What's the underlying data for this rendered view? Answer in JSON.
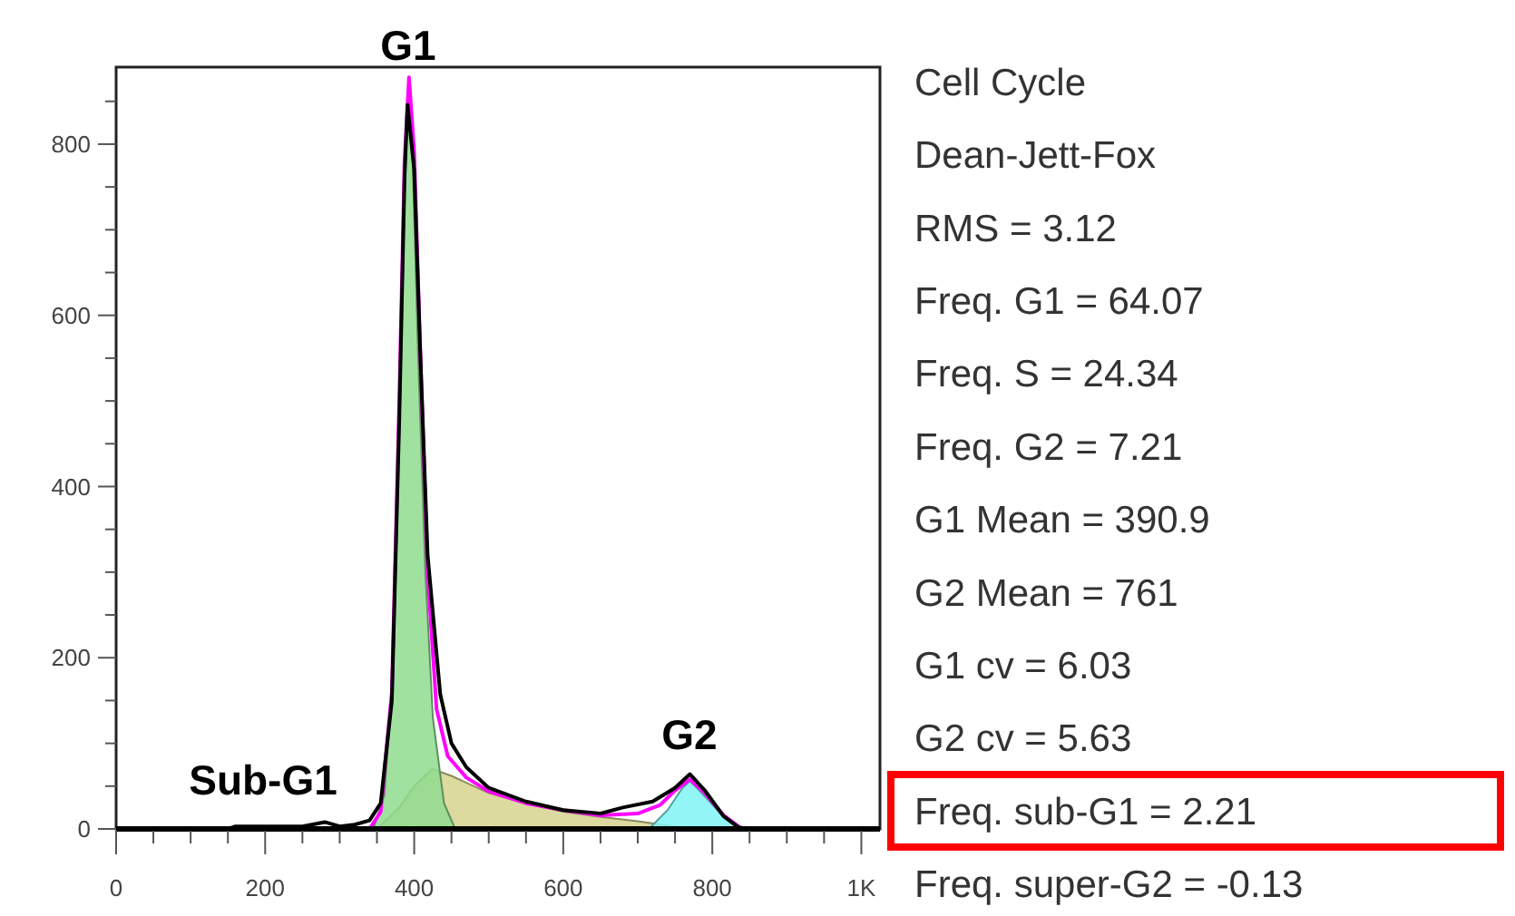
{
  "chart_data": {
    "type": "line",
    "xlim": [
      0,
      1025
    ],
    "ylim": [
      0,
      890
    ],
    "xticks": [
      0,
      {
        "value": 50,
        "label": null
      },
      {
        "value": 100,
        "label": null
      },
      {
        "value": 150,
        "label": null
      },
      200,
      {
        "value": 250,
        "label": null
      },
      {
        "value": 300,
        "label": null
      },
      {
        "value": 350,
        "label": null
      },
      400,
      {
        "value": 450,
        "label": null
      },
      {
        "value": 500,
        "label": null
      },
      {
        "value": 550,
        "label": null
      },
      600,
      {
        "value": 650,
        "label": null
      },
      {
        "value": 700,
        "label": null
      },
      {
        "value": 750,
        "label": null
      },
      800,
      {
        "value": 850,
        "label": null
      },
      {
        "value": 900,
        "label": null
      },
      {
        "value": 950,
        "label": null
      },
      {
        "value": 1000,
        "label": "1K"
      }
    ],
    "yticks": [
      0,
      {
        "value": 50,
        "label": null
      },
      {
        "value": 100,
        "label": null
      },
      {
        "value": 150,
        "label": null
      },
      200,
      {
        "value": 250,
        "label": null
      },
      {
        "value": 300,
        "label": null
      },
      {
        "value": 350,
        "label": null
      },
      400,
      {
        "value": 450,
        "label": null
      },
      {
        "value": 500,
        "label": null
      },
      {
        "value": 550,
        "label": null
      },
      600,
      {
        "value": 650,
        "label": null
      },
      {
        "value": 700,
        "label": null
      },
      {
        "value": 750,
        "label": null
      },
      800,
      {
        "value": 850,
        "label": null
      }
    ],
    "grid": false,
    "series": [
      {
        "type": "area",
        "color": "#d6d48e",
        "x": [
          350,
          380,
          400,
          424,
          450,
          500,
          550,
          600,
          650,
          700,
          740,
          780
        ],
        "values": [
          0,
          25,
          50,
          70,
          62,
          42,
          30,
          20,
          14,
          9,
          4,
          0
        ]
      },
      {
        "type": "area",
        "color": "#8fdc8f",
        "x": [
          345,
          360,
          370,
          380,
          386,
          392,
          398,
          405,
          415,
          425,
          440,
          455
        ],
        "values": [
          0,
          40,
          160,
          480,
          720,
          860,
          780,
          560,
          300,
          130,
          30,
          0
        ]
      },
      {
        "type": "area",
        "color": "#80f4f4",
        "x": [
          715,
          740,
          760,
          770,
          790,
          815,
          840
        ],
        "values": [
          0,
          22,
          48,
          56,
          38,
          14,
          0
        ]
      },
      {
        "type": "line",
        "color": "#ff00ff",
        "x": [
          340,
          355,
          370,
          380,
          387,
          393,
          400,
          408,
          418,
          430,
          445,
          470,
          500,
          550,
          600,
          650,
          700,
          730,
          750,
          770,
          790,
          815,
          840
        ],
        "values": [
          0,
          20,
          160,
          500,
          780,
          878,
          790,
          560,
          300,
          140,
          85,
          60,
          44,
          30,
          22,
          16,
          18,
          28,
          45,
          58,
          42,
          16,
          0
        ]
      },
      {
        "color": "#000000",
        "x": [
          150,
          160,
          250,
          280,
          300,
          320,
          340,
          355,
          370,
          380,
          387,
          391,
          400,
          408,
          418,
          435,
          450,
          470,
          500,
          550,
          600,
          650,
          680,
          720,
          750,
          770,
          790,
          815,
          835,
          850
        ],
        "values": [
          0,
          3,
          3,
          8,
          3,
          5,
          10,
          30,
          150,
          480,
          760,
          846,
          770,
          560,
          320,
          157,
          100,
          72,
          48,
          32,
          22,
          18,
          25,
          32,
          48,
          64,
          45,
          15,
          2,
          0
        ]
      }
    ],
    "annotations": [
      "G1",
      "Sub-G1",
      "G2",
      "Cell Cycle",
      "Dean-Jett-Fox",
      "RMS  = 3.12",
      "Freq. G1  = 64.07",
      "Freq. S = 24.34",
      "Freq. G2  = 7.21",
      "G1 Mean  = 390.9",
      "G2 Mean  = 761",
      "G1 cv  = 6.03",
      "G2 cv = 5.63",
      "Freq. sub-G1  = 2.21",
      "Freq. super-G2 = -0.13"
    ]
  }
}
